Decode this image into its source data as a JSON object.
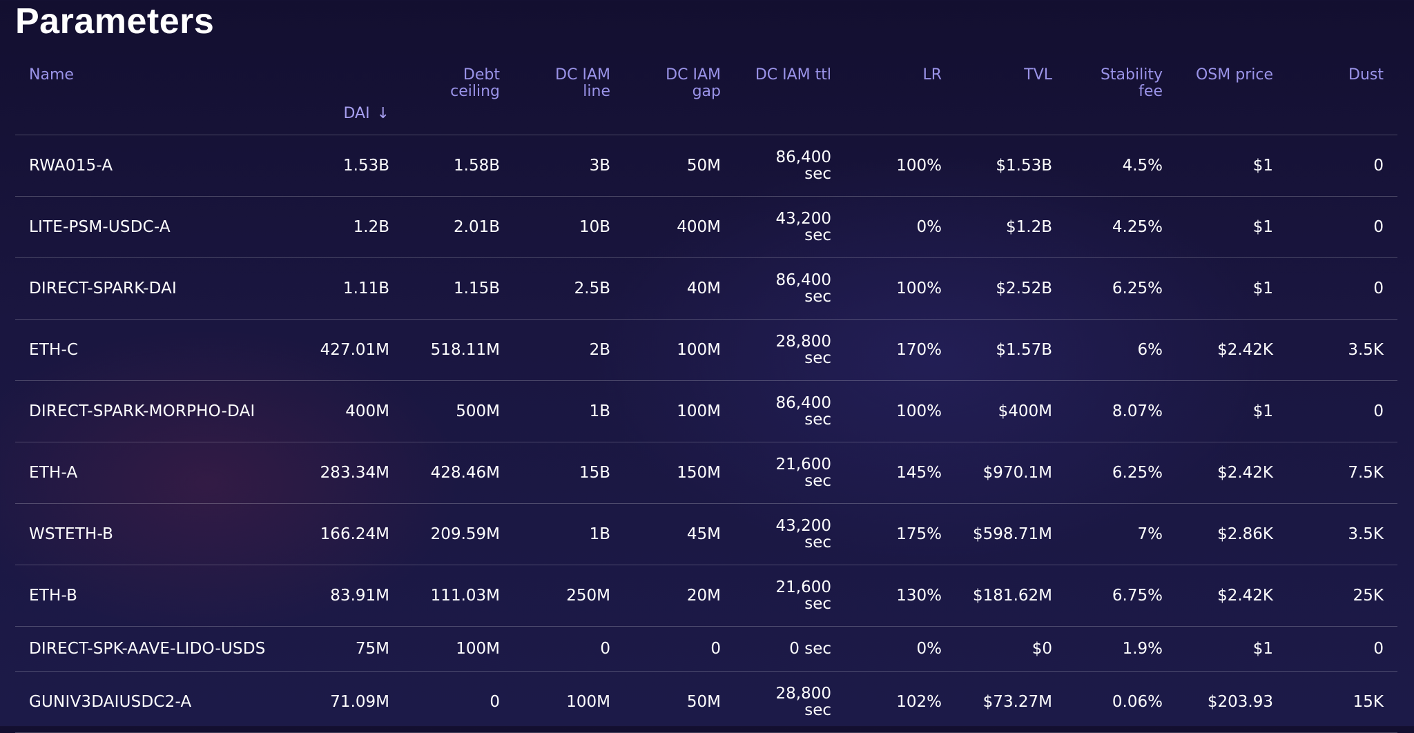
{
  "page": {
    "title": "Parameters"
  },
  "table": {
    "columns": [
      {
        "key": "name",
        "label": "Name"
      },
      {
        "key": "dai",
        "label": "DAI",
        "sort_icon": "arrow-down-icon"
      },
      {
        "key": "debt_ceiling",
        "label": "Debt ceiling"
      },
      {
        "key": "dc_iam_line",
        "label": "DC IAM line"
      },
      {
        "key": "dc_iam_gap",
        "label": "DC IAM gap"
      },
      {
        "key": "dc_iam_ttl",
        "label": "DC IAM ttl"
      },
      {
        "key": "lr",
        "label": "LR"
      },
      {
        "key": "tvl",
        "label": "TVL"
      },
      {
        "key": "stability_fee",
        "label": "Stability fee"
      },
      {
        "key": "osm_price",
        "label": "OSM price"
      },
      {
        "key": "dust",
        "label": "Dust"
      }
    ],
    "rows": [
      {
        "name": "RWA015-A",
        "dai": "1.53B",
        "debt_ceiling": "1.58B",
        "dc_iam_line": "3B",
        "dc_iam_gap": "50M",
        "dc_iam_ttl": "86,400 sec",
        "lr": "100%",
        "tvl": "$1.53B",
        "stability_fee": "4.5%",
        "osm_price": "$1",
        "dust": "0"
      },
      {
        "name": "LITE-PSM-USDC-A",
        "dai": "1.2B",
        "debt_ceiling": "2.01B",
        "dc_iam_line": "10B",
        "dc_iam_gap": "400M",
        "dc_iam_ttl": "43,200 sec",
        "lr": "0%",
        "tvl": "$1.2B",
        "stability_fee": "4.25%",
        "osm_price": "$1",
        "dust": "0"
      },
      {
        "name": "DIRECT-SPARK-DAI",
        "dai": "1.11B",
        "debt_ceiling": "1.15B",
        "dc_iam_line": "2.5B",
        "dc_iam_gap": "40M",
        "dc_iam_ttl": "86,400 sec",
        "lr": "100%",
        "tvl": "$2.52B",
        "stability_fee": "6.25%",
        "osm_price": "$1",
        "dust": "0"
      },
      {
        "name": "ETH-C",
        "dai": "427.01M",
        "debt_ceiling": "518.11M",
        "dc_iam_line": "2B",
        "dc_iam_gap": "100M",
        "dc_iam_ttl": "28,800 sec",
        "lr": "170%",
        "tvl": "$1.57B",
        "stability_fee": "6%",
        "osm_price": "$2.42K",
        "dust": "3.5K"
      },
      {
        "name": "DIRECT-SPARK-MORPHO-DAI",
        "dai": "400M",
        "debt_ceiling": "500M",
        "dc_iam_line": "1B",
        "dc_iam_gap": "100M",
        "dc_iam_ttl": "86,400 sec",
        "lr": "100%",
        "tvl": "$400M",
        "stability_fee": "8.07%",
        "osm_price": "$1",
        "dust": "0"
      },
      {
        "name": "ETH-A",
        "dai": "283.34M",
        "debt_ceiling": "428.46M",
        "dc_iam_line": "15B",
        "dc_iam_gap": "150M",
        "dc_iam_ttl": "21,600 sec",
        "lr": "145%",
        "tvl": "$970.1M",
        "stability_fee": "6.25%",
        "osm_price": "$2.42K",
        "dust": "7.5K"
      },
      {
        "name": "WSTETH-B",
        "dai": "166.24M",
        "debt_ceiling": "209.59M",
        "dc_iam_line": "1B",
        "dc_iam_gap": "45M",
        "dc_iam_ttl": "43,200 sec",
        "lr": "175%",
        "tvl": "$598.71M",
        "stability_fee": "7%",
        "osm_price": "$2.86K",
        "dust": "3.5K"
      },
      {
        "name": "ETH-B",
        "dai": "83.91M",
        "debt_ceiling": "111.03M",
        "dc_iam_line": "250M",
        "dc_iam_gap": "20M",
        "dc_iam_ttl": "21,600 sec",
        "lr": "130%",
        "tvl": "$181.62M",
        "stability_fee": "6.75%",
        "osm_price": "$2.42K",
        "dust": "25K"
      },
      {
        "name": "DIRECT-SPK-AAVE-LIDO-USDS",
        "dai": "75M",
        "debt_ceiling": "100M",
        "dc_iam_line": "0",
        "dc_iam_gap": "0",
        "dc_iam_ttl": "0 sec",
        "lr": "0%",
        "tvl": "$0",
        "stability_fee": "1.9%",
        "osm_price": "$1",
        "dust": "0"
      },
      {
        "name": "GUNIV3DAIUSDC2-A",
        "dai": "71.09M",
        "debt_ceiling": "0",
        "dc_iam_line": "100M",
        "dc_iam_gap": "50M",
        "dc_iam_ttl": "28,800 sec",
        "lr": "102%",
        "tvl": "$73.27M",
        "stability_fee": "0.06%",
        "osm_price": "$203.93",
        "dust": "15K"
      }
    ]
  }
}
